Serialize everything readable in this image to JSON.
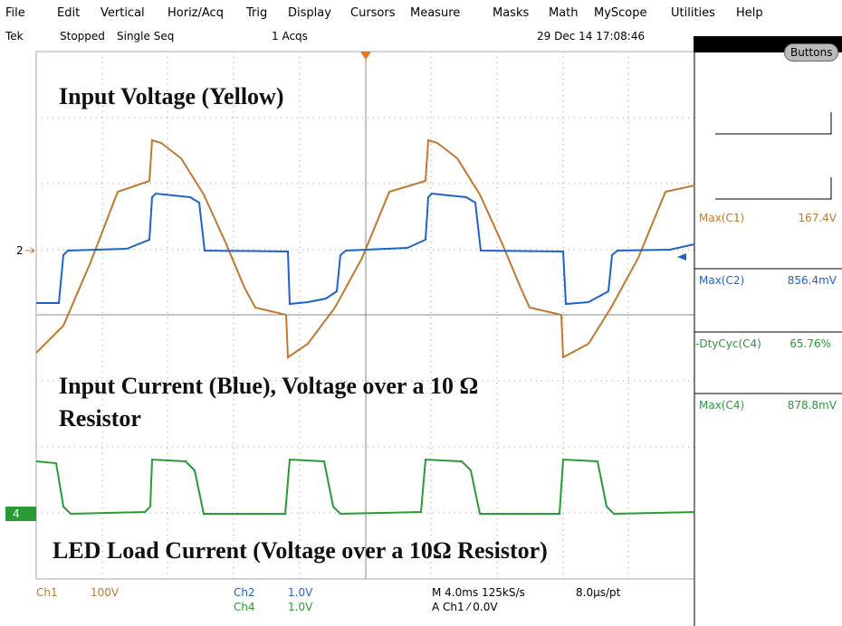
{
  "menu": [
    "File",
    "Edit",
    "Vertical",
    "Horiz/Acq",
    "Trig",
    "Display",
    "Cursors",
    "Measure",
    "Masks",
    "Math",
    "MyScope",
    "Utilities",
    "Help"
  ],
  "status": {
    "brand": "Tek",
    "state": "Stopped",
    "mode": "Single Seq",
    "acqs": "1 Acqs",
    "datetime": "29 Dec 14 17:08:46"
  },
  "buttons": "Buttons",
  "markers": {
    "ch2": "2",
    "ch4": "4"
  },
  "annotations": [
    "Input Voltage (Yellow)",
    "Input Current (Blue), Voltage over a 10 Ω",
    "Resistor",
    "LED Load Current (Voltage over a 10Ω Resistor)"
  ],
  "measurements": [
    {
      "label": "Max(C1)",
      "value": "167.4V"
    },
    {
      "label": "Max(C2)",
      "value": "856.4mV"
    },
    {
      "label": "-DtyCyc(C4)",
      "value": "65.76%"
    },
    {
      "label": "Max(C4)",
      "value": "878.8mV"
    }
  ],
  "bottom": {
    "ch1": "Ch1",
    "ch1_scale": "100V",
    "ch2": "Ch2",
    "ch2_scale": "1.0V",
    "ch4": "Ch4",
    "ch4_scale": "1.0V",
    "timebase": "M 4.0ms 125kS/s",
    "resolution": "8.0µs/pt",
    "trigger": "A Ch1 ⁄ 0.0V"
  }
}
